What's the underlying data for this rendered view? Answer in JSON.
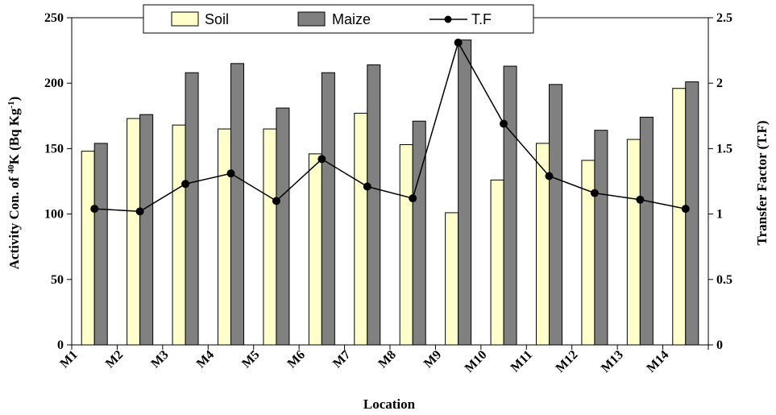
{
  "chart_data": {
    "type": "bar",
    "categories": [
      "M1",
      "M2",
      "M3",
      "M4",
      "M5",
      "M6",
      "M7",
      "M8",
      "M9",
      "M10",
      "M11",
      "M12",
      "M13",
      "M14"
    ],
    "series": [
      {
        "name": "Soil",
        "kind": "bar",
        "axis": "left",
        "color": "#ffffcc",
        "values": [
          148,
          173,
          168,
          165,
          165,
          146,
          177,
          153,
          101,
          126,
          154,
          141,
          157,
          196
        ]
      },
      {
        "name": "Maize",
        "kind": "bar",
        "axis": "left",
        "color": "#808080",
        "values": [
          154,
          176,
          208,
          215,
          181,
          208,
          214,
          171,
          233,
          213,
          199,
          164,
          174,
          201
        ]
      },
      {
        "name": "T.F",
        "kind": "line",
        "axis": "right",
        "color": "#000000",
        "marker": "circle",
        "values": [
          1.04,
          1.02,
          1.23,
          1.31,
          1.1,
          1.42,
          1.21,
          1.12,
          2.31,
          1.69,
          1.29,
          1.16,
          1.11,
          1.04
        ]
      }
    ],
    "xlabel": "Location",
    "ylabel_parts": [
      "Activity Con. of ",
      "40",
      "K (Bq Kg",
      "-1",
      ")"
    ],
    "y2label": "Transfer Factor (T.F)",
    "ylim": [
      0,
      250
    ],
    "y2lim": [
      0,
      2.5
    ],
    "yticks": [
      0,
      50,
      100,
      150,
      200,
      250
    ],
    "y2ticks": [
      "0",
      "0.5",
      "1",
      "1.5",
      "2",
      "2.5"
    ],
    "legend_position": "top-center",
    "grid": false
  }
}
